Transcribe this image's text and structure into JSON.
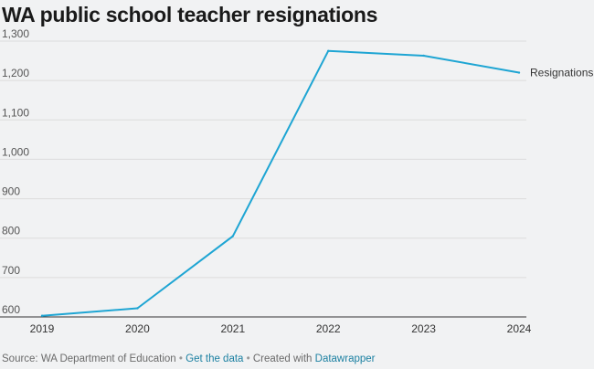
{
  "chart_data": {
    "type": "line",
    "title": "WA public school teacher resignations",
    "xlabel": "",
    "ylabel": "",
    "x": [
      "2019",
      "2020",
      "2021",
      "2022",
      "2023",
      "2024"
    ],
    "series": [
      {
        "name": "Resignations",
        "values": [
          603,
          622,
          805,
          1275,
          1263,
          1220
        ],
        "color": "#1ea5d3"
      }
    ],
    "ylim": [
      600,
      1300
    ],
    "yticks": [
      600,
      700,
      800,
      900,
      1000,
      1100,
      1200,
      1300
    ],
    "ytick_labels": [
      "600",
      "700",
      "800",
      "900",
      "1,000",
      "1,100",
      "1,200",
      "1,300"
    ],
    "grid": true,
    "legend": "direct label at line end"
  },
  "footer": {
    "source": "Source: WA Department of Education",
    "get_data": "Get the data",
    "created": "Created with",
    "tool": "Datawrapper",
    "separator": "•"
  },
  "colors": {
    "background": "#f1f2f3",
    "gridline": "#dcdcdc",
    "line": "#1ea5d3",
    "link": "#1d81a2"
  }
}
